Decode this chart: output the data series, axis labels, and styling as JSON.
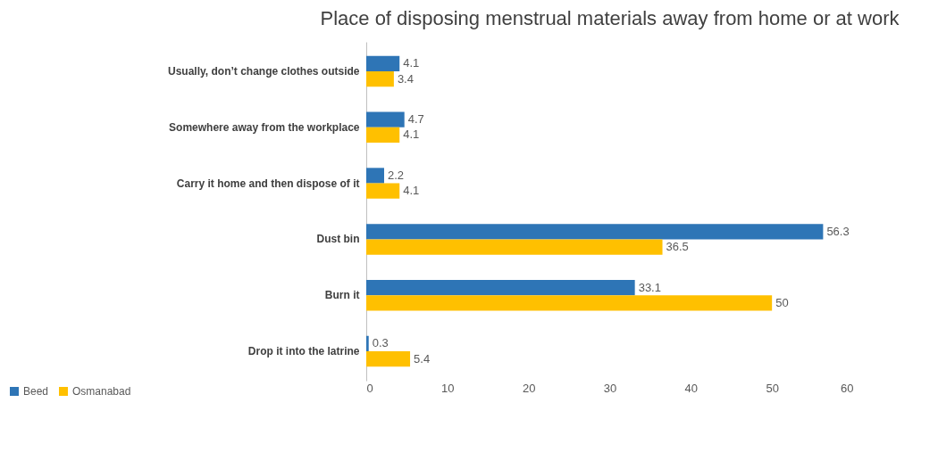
{
  "chart_data": {
    "type": "bar",
    "orientation": "horizontal",
    "title": "Place of disposing menstrual materials away from home or at work",
    "categories": [
      "Usually, don’t change clothes outside",
      "Somewhere away from the workplace",
      "Carry it home and then dispose of it",
      "Dust bin",
      "Burn it",
      "Drop it into the latrine"
    ],
    "series": [
      {
        "name": "Beed",
        "color": "#2e75b6",
        "values": [
          4.1,
          4.7,
          2.2,
          56.3,
          33.1,
          0.3
        ]
      },
      {
        "name": "Osmanabad",
        "color": "#ffc000",
        "values": [
          3.4,
          4.1,
          4.1,
          36.5,
          50,
          5.4
        ]
      }
    ],
    "xlim": [
      0,
      60
    ],
    "xticks": [
      0,
      10,
      20,
      30,
      40,
      50,
      60
    ],
    "grid": false,
    "legend": "bottom left",
    "data_labels": true
  }
}
